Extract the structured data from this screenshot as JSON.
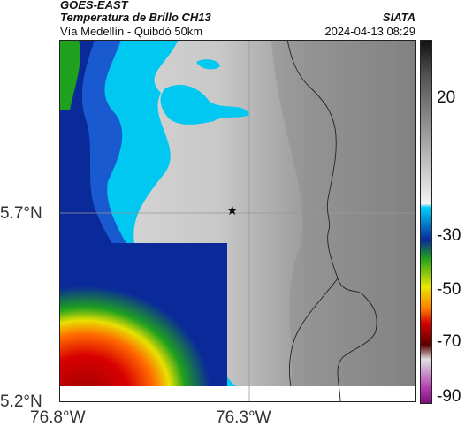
{
  "header": {
    "satellite": "GOES-EAST",
    "product": "Temperatura de Brillo CH13",
    "subtitle": "Vía Medellín - Quibdó 50km",
    "organization": "SIATA",
    "timestamp": "2024-04-13 08:29"
  },
  "map": {
    "lat_ticks": [
      "5.7°N",
      "5.2°N"
    ],
    "lon_ticks": [
      "76.8°W",
      "76.3°W"
    ],
    "marker_icon": "star-icon",
    "colorbar_ticks": [
      "20",
      "-30",
      "-50",
      "-70",
      "-90"
    ],
    "colors": {
      "cold_magenta": "#b03ab0",
      "red": "#d40000",
      "orange": "#ff7a00",
      "yellow": "#e8e800",
      "green": "#1fa01f",
      "cyan": "#00c8f0",
      "blue": "#0a2a9a",
      "warm_gray": "#8a8a8a",
      "light_gray": "#d8d8d8"
    }
  }
}
